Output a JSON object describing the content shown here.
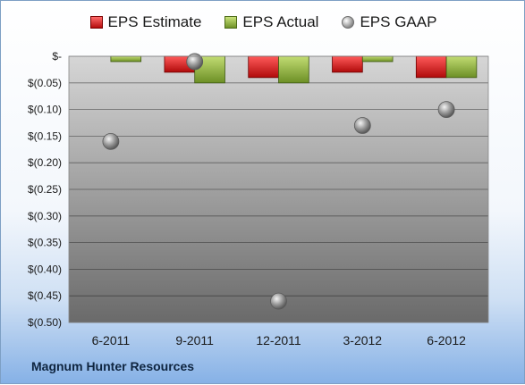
{
  "company_name": "Magnum Hunter Resources",
  "legend": {
    "estimate_label": "EPS Estimate",
    "actual_label": "EPS Actual",
    "gaap_label": "EPS GAAP"
  },
  "colors": {
    "estimate": "#d01818",
    "actual": "#8db33a",
    "gaap": "#9a9a9a",
    "plot_top": "#d6d6d6",
    "plot_bottom": "#6a6a6a",
    "frame_bottom": "#86b1e6"
  },
  "chart_data": {
    "type": "bar",
    "categories": [
      "6-2011",
      "9-2011",
      "12-2011",
      "3-2012",
      "6-2012"
    ],
    "series": [
      {
        "name": "EPS Estimate",
        "type": "bar",
        "values": [
          null,
          -0.03,
          -0.04,
          -0.03,
          -0.04
        ]
      },
      {
        "name": "EPS Actual",
        "type": "bar",
        "values": [
          -0.01,
          -0.05,
          -0.05,
          -0.01,
          -0.04
        ]
      },
      {
        "name": "EPS GAAP",
        "type": "scatter",
        "values": [
          -0.16,
          -0.01,
          -0.46,
          -0.13,
          -0.1
        ]
      }
    ],
    "ylim": [
      -0.5,
      0
    ],
    "yticks": [
      0,
      -0.05,
      -0.1,
      -0.15,
      -0.2,
      -0.25,
      -0.3,
      -0.35,
      -0.4,
      -0.45,
      -0.5
    ],
    "ytick_labels": [
      "$-",
      "$(0.05)",
      "$(0.10)",
      "$(0.15)",
      "$(0.20)",
      "$(0.25)",
      "$(0.30)",
      "$(0.35)",
      "$(0.40)",
      "$(0.45)",
      "$(0.50)"
    ],
    "xlabel": "",
    "ylabel": "",
    "grid": true,
    "legend_position": "top"
  }
}
